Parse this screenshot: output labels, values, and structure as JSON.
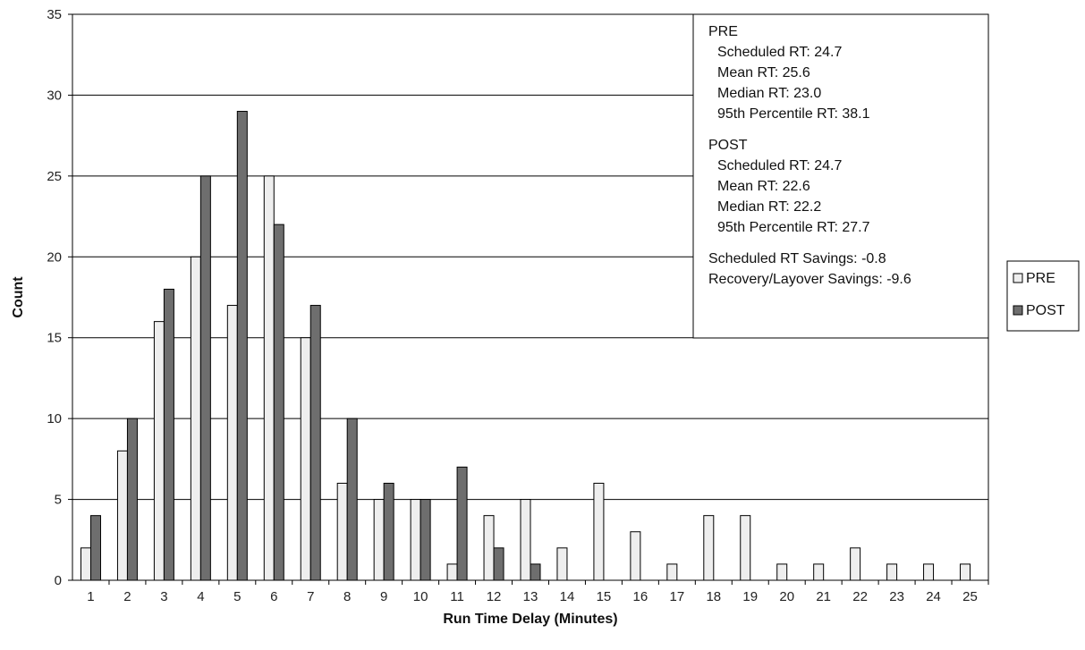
{
  "chart_data": {
    "type": "bar",
    "xlabel": "Run Time Delay (Minutes)",
    "ylabel": "Count",
    "ylim": [
      0,
      35
    ],
    "yticks": [
      0,
      5,
      10,
      15,
      20,
      25,
      30,
      35
    ],
    "grid": true,
    "legend_position": "right",
    "categories": [
      "1",
      "2",
      "3",
      "4",
      "5",
      "6",
      "7",
      "8",
      "9",
      "10",
      "11",
      "12",
      "13",
      "14",
      "15",
      "16",
      "17",
      "18",
      "19",
      "20",
      "21",
      "22",
      "23",
      "24",
      "25"
    ],
    "series": [
      {
        "name": "PRE",
        "color": "#eeeeee",
        "values": [
          2,
          8,
          16,
          20,
          17,
          25,
          15,
          6,
          5,
          5,
          1,
          4,
          5,
          2,
          6,
          3,
          1,
          4,
          4,
          1,
          1,
          2,
          1,
          1,
          1
        ]
      },
      {
        "name": "POST",
        "color": "#6e6e6e",
        "values": [
          4,
          10,
          18,
          25,
          29,
          22,
          17,
          10,
          6,
          5,
          7,
          2,
          1,
          0,
          0,
          0,
          0,
          0,
          0,
          0,
          0,
          0,
          0,
          0,
          0
        ]
      }
    ],
    "annotation_lines": [
      {
        "text": "PRE",
        "indent": false
      },
      {
        "text": "Scheduled RT: 24.7",
        "indent": true
      },
      {
        "text": "Mean RT: 25.6",
        "indent": true
      },
      {
        "text": "Median RT: 23.0",
        "indent": true
      },
      {
        "text": "95th Percentile RT: 38.1",
        "indent": true
      },
      {
        "text": "",
        "indent": false
      },
      {
        "text": "POST",
        "indent": false
      },
      {
        "text": "Scheduled RT: 24.7",
        "indent": true
      },
      {
        "text": "Mean RT: 22.6",
        "indent": true
      },
      {
        "text": "Median RT: 22.2",
        "indent": true
      },
      {
        "text": "95th Percentile RT: 27.7",
        "indent": true
      },
      {
        "text": "",
        "indent": false
      },
      {
        "text": "Scheduled RT Savings: -0.8",
        "indent": false
      },
      {
        "text": "Recovery/Layover Savings: -9.6",
        "indent": false
      }
    ]
  }
}
